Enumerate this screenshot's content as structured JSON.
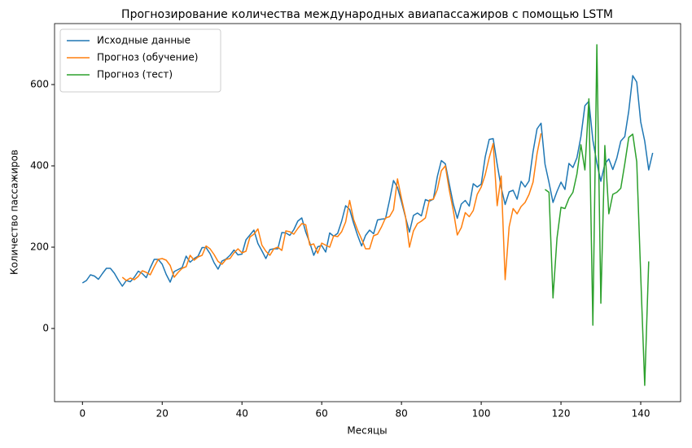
{
  "chart_data": {
    "type": "line",
    "title": "Прогнозирование количества международных авиапассажиров с помощью LSTM",
    "xlabel": "Месяцы",
    "ylabel": "Количество пассажиров",
    "xlim": [
      -7,
      150
    ],
    "ylim": [
      -180,
      750
    ],
    "xticks": [
      0,
      20,
      40,
      60,
      80,
      100,
      120,
      140
    ],
    "yticks": [
      0,
      200,
      400,
      600
    ],
    "grid": false,
    "legend": "upper left",
    "series": [
      {
        "name": "Исходные данные",
        "color": "#1f77b4",
        "x": [
          0,
          1,
          2,
          3,
          4,
          5,
          6,
          7,
          8,
          9,
          10,
          11,
          12,
          13,
          14,
          15,
          16,
          17,
          18,
          19,
          20,
          21,
          22,
          23,
          24,
          25,
          26,
          27,
          28,
          29,
          30,
          31,
          32,
          33,
          34,
          35,
          36,
          37,
          38,
          39,
          40,
          41,
          42,
          43,
          44,
          45,
          46,
          47,
          48,
          49,
          50,
          51,
          52,
          53,
          54,
          55,
          56,
          57,
          58,
          59,
          60,
          61,
          62,
          63,
          64,
          65,
          66,
          67,
          68,
          69,
          70,
          71,
          72,
          73,
          74,
          75,
          76,
          77,
          78,
          79,
          80,
          81,
          82,
          83,
          84,
          85,
          86,
          87,
          88,
          89,
          90,
          91,
          92,
          93,
          94,
          95,
          96,
          97,
          98,
          99,
          100,
          101,
          102,
          103,
          104,
          105,
          106,
          107,
          108,
          109,
          110,
          111,
          112,
          113,
          114,
          115,
          116,
          117,
          118,
          119,
          120,
          121,
          122,
          123,
          124,
          125,
          126,
          127,
          128,
          129,
          130,
          131,
          132,
          133,
          134,
          135,
          136,
          137,
          138,
          139,
          140,
          141,
          142,
          143
        ],
        "values": [
          112,
          118,
          132,
          129,
          121,
          135,
          148,
          148,
          136,
          119,
          104,
          118,
          115,
          126,
          141,
          135,
          125,
          149,
          170,
          170,
          158,
          133,
          114,
          140,
          145,
          150,
          178,
          163,
          172,
          178,
          199,
          199,
          184,
          162,
          146,
          166,
          171,
          180,
          193,
          181,
          183,
          218,
          230,
          242,
          209,
          191,
          172,
          194,
          196,
          196,
          236,
          235,
          229,
          243,
          264,
          272,
          237,
          211,
          180,
          201,
          204,
          188,
          235,
          227,
          234,
          264,
          302,
          293,
          259,
          229,
          203,
          229,
          242,
          233,
          267,
          269,
          270,
          315,
          364,
          347,
          312,
          274,
          237,
          278,
          284,
          277,
          317,
          313,
          318,
          374,
          413,
          405,
          355,
          306,
          271,
          306,
          315,
          301,
          356,
          348,
          355,
          422,
          465,
          467,
          404,
          347,
          305,
          336,
          340,
          318,
          362,
          348,
          363,
          435,
          491,
          505,
          404,
          359,
          310,
          337,
          360,
          342,
          406,
          396,
          420,
          472,
          548,
          559,
          463,
          407,
          362,
          405,
          417,
          391,
          419,
          461,
          472,
          535,
          622,
          606,
          508,
          461,
          390,
          432
        ]
      },
      {
        "name": "Прогноз (обучение)",
        "color": "#ff7f0e",
        "x": [
          10,
          11,
          12,
          13,
          14,
          15,
          16,
          17,
          18,
          19,
          20,
          21,
          22,
          23,
          24,
          25,
          26,
          27,
          28,
          29,
          30,
          31,
          32,
          33,
          34,
          35,
          36,
          37,
          38,
          39,
          40,
          41,
          42,
          43,
          44,
          45,
          46,
          47,
          48,
          49,
          50,
          51,
          52,
          53,
          54,
          55,
          56,
          57,
          58,
          59,
          60,
          61,
          62,
          63,
          64,
          65,
          66,
          67,
          68,
          69,
          70,
          71,
          72,
          73,
          74,
          75,
          76,
          77,
          78,
          79,
          80,
          81,
          82,
          83,
          84,
          85,
          86,
          87,
          88,
          89,
          90,
          91,
          92,
          93,
          94,
          95,
          96,
          97,
          98,
          99,
          100,
          101,
          102,
          103,
          104,
          105,
          106,
          107,
          108,
          109,
          110,
          111,
          112,
          113,
          114,
          115
        ],
        "values": [
          126,
          118,
          124,
          120,
          128,
          142,
          138,
          132,
          152,
          170,
          172,
          168,
          155,
          126,
          138,
          148,
          152,
          180,
          168,
          176,
          180,
          203,
          196,
          182,
          165,
          158,
          170,
          172,
          186,
          196,
          186,
          190,
          225,
          232,
          245,
          205,
          190,
          180,
          196,
          200,
          192,
          240,
          238,
          232,
          246,
          258,
          255,
          205,
          208,
          185,
          210,
          205,
          200,
          228,
          226,
          238,
          262,
          315,
          268,
          242,
          220,
          196,
          196,
          228,
          232,
          250,
          272,
          275,
          292,
          368,
          320,
          276,
          200,
          240,
          258,
          264,
          272,
          316,
          318,
          342,
          388,
          400,
          340,
          290,
          230,
          248,
          285,
          275,
          290,
          330,
          348,
          378,
          420,
          455,
          302,
          375,
          120,
          250,
          295,
          282,
          300,
          310,
          330,
          360,
          430,
          480
        ]
      },
      {
        "name": "Прогноз (тест)",
        "color": "#2ca02c",
        "x": [
          116,
          117,
          118,
          119,
          120,
          121,
          122,
          123,
          124,
          125,
          126,
          127,
          128,
          129,
          130,
          131,
          132,
          133,
          134,
          135,
          136,
          137,
          138,
          139,
          140,
          141,
          142
        ],
        "values": [
          342,
          335,
          75,
          222,
          298,
          295,
          320,
          335,
          380,
          452,
          390,
          565,
          8,
          698,
          62,
          450,
          282,
          330,
          335,
          345,
          405,
          470,
          478,
          410,
          130,
          -140,
          165
        ]
      }
    ]
  }
}
